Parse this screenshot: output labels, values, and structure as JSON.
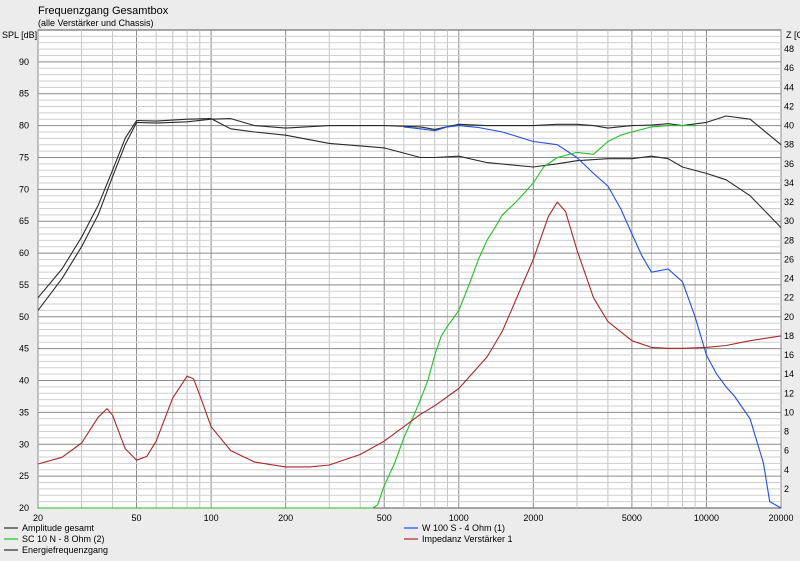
{
  "chart_data": {
    "type": "line",
    "title": "Frequenzgang Gesamtbox",
    "subtitle": "(alle Verstärker und Chassis)",
    "ylabel_left": "SPL [dB]",
    "ylabel_right": "Z [Ohm]",
    "x_scale": "log",
    "xlim": [
      20,
      20000
    ],
    "ylim_left": [
      20,
      95
    ],
    "ylim_right": [
      0,
      50
    ],
    "grid": true,
    "legend_placement": "bottom",
    "x_ticks": [
      {
        "value": 20,
        "label": "20"
      },
      {
        "value": 50,
        "label": "50"
      },
      {
        "value": 100,
        "label": "100"
      },
      {
        "value": 200,
        "label": "200"
      },
      {
        "value": 500,
        "label": "500"
      },
      {
        "value": 1000,
        "label": "1000"
      },
      {
        "value": 2000,
        "label": "2000"
      },
      {
        "value": 5000,
        "label": "5000"
      },
      {
        "value": 10000,
        "label": "10000"
      },
      {
        "value": 20000,
        "label": "20000"
      }
    ],
    "y_ticks_left": [
      20,
      25,
      30,
      35,
      40,
      45,
      50,
      55,
      60,
      65,
      70,
      75,
      80,
      85,
      90
    ],
    "y_ticks_right": [
      2,
      4,
      6,
      8,
      10,
      12,
      14,
      16,
      18,
      20,
      22,
      24,
      26,
      28,
      30,
      32,
      34,
      36,
      38,
      40,
      42,
      44,
      46,
      48
    ],
    "series": [
      {
        "name": "Amplitude gesamt",
        "axis": "left",
        "color": "#2a2a2a",
        "x": [
          20,
          25,
          30,
          35,
          40,
          45,
          50,
          60,
          80,
          100,
          120,
          150,
          200,
          300,
          500,
          700,
          800,
          1000,
          1300,
          2000,
          2500,
          3000,
          3500,
          4000,
          5000,
          6000,
          7000,
          8000,
          10000,
          12000,
          15000,
          20000
        ],
        "y": [
          51,
          56,
          61,
          66,
          72,
          77,
          80.5,
          80.4,
          80.6,
          81.0,
          81.1,
          80.0,
          79.6,
          80.0,
          80.0,
          79.8,
          79.4,
          80.2,
          80.0,
          80.0,
          80.2,
          80.2,
          80.0,
          79.6,
          80.0,
          80.1,
          80.3,
          80.0,
          80.5,
          81.5,
          81.0,
          77.0
        ]
      },
      {
        "name": "Energiefrequenzgang",
        "axis": "left",
        "color": "#2a2a2a",
        "x": [
          20,
          25,
          30,
          35,
          40,
          45,
          50,
          60,
          80,
          100,
          120,
          150,
          200,
          300,
          500,
          700,
          800,
          1000,
          1300,
          2000,
          2500,
          3000,
          4000,
          5000,
          6000,
          7000,
          8000,
          10000,
          12000,
          15000,
          20000
        ],
        "y": [
          53,
          57.5,
          62.5,
          67.5,
          73,
          78,
          80.8,
          80.7,
          81.0,
          81.1,
          79.5,
          79.0,
          78.5,
          77.2,
          76.5,
          75.0,
          75.0,
          75.2,
          74.2,
          73.5,
          74.0,
          74.5,
          74.8,
          74.8,
          75.2,
          74.8,
          73.5,
          72.5,
          71.5,
          69.0,
          64.0
        ]
      },
      {
        "name": "W 100 S - 4 Ohm (1)",
        "axis": "left",
        "color": "#2050e0",
        "x": [
          600,
          700,
          800,
          900,
          1000,
          1200,
          1500,
          2000,
          2500,
          3000,
          3500,
          4000,
          4500,
          5000,
          5500,
          6000,
          7000,
          8000,
          9000,
          10000,
          11000,
          12000,
          13000,
          15000,
          17000,
          18000,
          20000
        ],
        "y": [
          79.8,
          79.5,
          79.2,
          79.8,
          80.0,
          79.7,
          79.0,
          77.5,
          77.0,
          75.0,
          72.5,
          70.5,
          67.0,
          63.0,
          59.5,
          57.0,
          57.5,
          55.5,
          50.0,
          44.0,
          41.0,
          39.0,
          37.5,
          34.0,
          27.0,
          21.0,
          20.0
        ]
      },
      {
        "name": "SC 10 N - 8 Ohm (2)",
        "axis": "left",
        "color": "#22c022",
        "x": [
          20,
          100,
          300,
          450,
          470,
          500,
          550,
          600,
          650,
          700,
          750,
          800,
          850,
          900,
          1000,
          1100,
          1200,
          1300,
          1400,
          1500,
          1700,
          2000,
          2200,
          2500,
          3000,
          3500,
          4000,
          4500,
          5000,
          6000,
          7000,
          8000,
          9000
        ],
        "y": [
          20,
          20,
          20,
          20,
          20.5,
          23.5,
          27,
          31,
          34,
          37,
          40,
          44,
          47,
          48.5,
          51,
          55,
          59,
          62,
          64,
          66,
          68,
          71,
          73.5,
          75,
          75.8,
          75.5,
          77.5,
          78.5,
          79.0,
          79.8,
          80.0,
          80.0,
          80.0
        ]
      },
      {
        "name": "Impedanz Verstärker 1",
        "axis": "right",
        "color": "#a52a2a",
        "x": [
          20,
          25,
          30,
          35,
          38,
          40,
          45,
          50,
          55,
          60,
          70,
          80,
          85,
          90,
          100,
          120,
          150,
          200,
          250,
          300,
          400,
          500,
          600,
          700,
          800,
          1000,
          1300,
          1500,
          2000,
          2300,
          2500,
          2700,
          3000,
          3500,
          4000,
          5000,
          6000,
          7000,
          8000,
          10000,
          12000,
          15000,
          20000
        ],
        "y": [
          4.6,
          5.3,
          6.8,
          9.5,
          10.4,
          9.7,
          6.2,
          5.0,
          5.4,
          7.0,
          11.5,
          13.8,
          13.5,
          11.8,
          8.5,
          6.0,
          4.8,
          4.3,
          4.3,
          4.5,
          5.6,
          7.0,
          8.5,
          9.8,
          10.7,
          12.5,
          15.8,
          18.5,
          26.0,
          30.5,
          32.0,
          31.0,
          27.0,
          22.0,
          19.5,
          17.5,
          16.8,
          16.7,
          16.7,
          16.8,
          17.0,
          17.5,
          18.0
        ]
      }
    ]
  },
  "legend": [
    {
      "label": "Amplitude gesamt",
      "color": "#2a2a2a"
    },
    {
      "label": "SC 10 N - 8 Ohm (2)",
      "color": "#22c022"
    },
    {
      "label": "Energiefrequenzgang",
      "color": "#2a2a2a"
    },
    {
      "label": "W 100 S - 4 Ohm (1)",
      "color": "#2050e0"
    },
    {
      "label": "Impedanz Verstärker 1",
      "color": "#a52a2a"
    }
  ]
}
